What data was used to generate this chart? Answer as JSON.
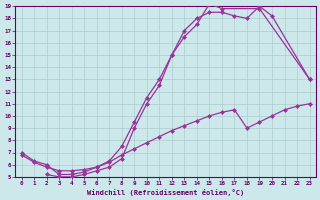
{
  "bg_color": "#cce8ea",
  "grid_color": "#aacccc",
  "line_color": "#993399",
  "markersize": 2.5,
  "linewidth": 0.9,
  "xlabel": "Windchill (Refroidissement éolien,°C)",
  "xlim": [
    -0.5,
    23.5
  ],
  "ylim": [
    5,
    19
  ],
  "yticks": [
    5,
    6,
    7,
    8,
    9,
    10,
    11,
    12,
    13,
    14,
    15,
    16,
    17,
    18,
    19
  ],
  "xticks": [
    0,
    1,
    2,
    3,
    4,
    5,
    6,
    7,
    8,
    9,
    10,
    11,
    12,
    13,
    14,
    15,
    16,
    17,
    18,
    19,
    20,
    21,
    22,
    23
  ],
  "line1_x": [
    0,
    1,
    2,
    3,
    4,
    5,
    6,
    7,
    8,
    9,
    10,
    11,
    12,
    13,
    14,
    15,
    16,
    19,
    23
  ],
  "line1_y": [
    7,
    6.3,
    6.0,
    5.2,
    5.2,
    5.4,
    5.8,
    6.3,
    7.5,
    9.5,
    11.5,
    13.0,
    15.0,
    16.5,
    17.5,
    19.2,
    18.8,
    18.8,
    13.0
  ],
  "line2_x": [
    2,
    3,
    4,
    5,
    6,
    7,
    8,
    9,
    10,
    11,
    12,
    13,
    14,
    15,
    16,
    17,
    18,
    19,
    20,
    23
  ],
  "line2_y": [
    5.2,
    5.0,
    5.0,
    5.2,
    5.5,
    5.8,
    6.5,
    9.0,
    11.0,
    12.5,
    15.0,
    17.0,
    18.0,
    18.5,
    18.5,
    18.2,
    18.0,
    19.0,
    18.2,
    13.0
  ],
  "line3_x": [
    0,
    1,
    2,
    3,
    4,
    5,
    6,
    7,
    8,
    9,
    10,
    11,
    12,
    13,
    14,
    15,
    16,
    17,
    18,
    19,
    20,
    21,
    22,
    23
  ],
  "line3_y": [
    6.8,
    6.2,
    5.8,
    5.5,
    5.5,
    5.6,
    5.8,
    6.2,
    6.8,
    7.3,
    7.8,
    8.3,
    8.8,
    9.2,
    9.6,
    10.0,
    10.3,
    10.5,
    9.0,
    9.5,
    10.0,
    10.5,
    10.8,
    11.0
  ]
}
